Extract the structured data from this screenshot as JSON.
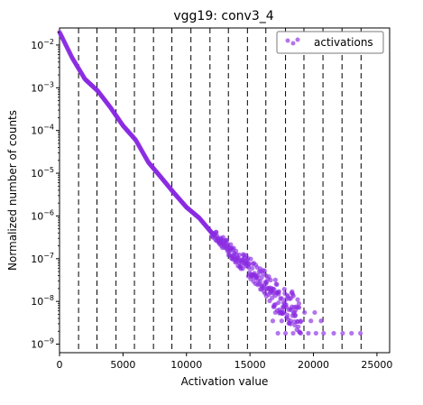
{
  "chart_data": {
    "type": "scatter",
    "title": "vgg19: conv3_4",
    "xlabel": "Activation value",
    "ylabel": "Normalized number of counts",
    "xlim": [
      0,
      26000
    ],
    "ylim_log10": [
      -9.2,
      -1.6
    ],
    "y_scale": "log",
    "x_ticks": [
      0,
      5000,
      10000,
      15000,
      20000,
      25000
    ],
    "x_tick_labels": [
      "0",
      "5000",
      "10000",
      "15000",
      "20000",
      "25000"
    ],
    "y_ticks_exp": [
      -2,
      -3,
      -4,
      -5,
      -6,
      -7,
      -8,
      -9
    ],
    "y_tick_base": "10",
    "grid": false,
    "legend_position": "upper right",
    "series": [
      {
        "name": "activations",
        "color": "#8a2be2",
        "marker": "circle",
        "trend": [
          [
            0,
            0.02
          ],
          [
            1000,
            0.005
          ],
          [
            2000,
            0.0016
          ],
          [
            3000,
            0.00085
          ],
          [
            4000,
            0.00035
          ],
          [
            5000,
            0.00013
          ],
          [
            6000,
            6e-05
          ],
          [
            7000,
            1.8e-05
          ],
          [
            8000,
            8e-06
          ],
          [
            9000,
            3.5e-06
          ],
          [
            10000,
            1.6e-06
          ],
          [
            11000,
            9e-07
          ],
          [
            12000,
            4e-07
          ],
          [
            13000,
            2.2e-07
          ],
          [
            14000,
            1.1e-07
          ],
          [
            15000,
            6e-08
          ],
          [
            16000,
            3e-08
          ],
          [
            17000,
            1.5e-08
          ],
          [
            18000,
            8e-09
          ],
          [
            19000,
            5e-09
          ],
          [
            20000,
            3e-09
          ]
        ],
        "tail_levels": [
          1.8e-09,
          3.5e-09,
          5.5e-09,
          7.5e-09
        ],
        "tail_points": [
          [
            17200,
            1.8e-09
          ],
          [
            17800,
            1.8e-09
          ],
          [
            18400,
            1.8e-09
          ],
          [
            19000,
            1.8e-09
          ],
          [
            19600,
            1.8e-09
          ],
          [
            20200,
            1.8e-09
          ],
          [
            20800,
            1.8e-09
          ],
          [
            21600,
            1.8e-09
          ],
          [
            22300,
            1.8e-09
          ],
          [
            23000,
            1.8e-09
          ],
          [
            23700,
            1.8e-09
          ],
          [
            16800,
            3.5e-09
          ],
          [
            17500,
            3.5e-09
          ],
          [
            18200,
            3.5e-09
          ],
          [
            19000,
            3.5e-09
          ],
          [
            19800,
            3.5e-09
          ],
          [
            20600,
            3.5e-09
          ],
          [
            17000,
            5.5e-09
          ],
          [
            17700,
            5.5e-09
          ],
          [
            18500,
            5.5e-09
          ],
          [
            19300,
            5.5e-09
          ],
          [
            20100,
            5.5e-09
          ],
          [
            16900,
            7.5e-09
          ],
          [
            17600,
            7.5e-09
          ],
          [
            18300,
            7.5e-09
          ]
        ]
      }
    ],
    "vertical_dashed_lines_x": [
      1500,
      2950,
      4450,
      5900,
      7400,
      8850,
      10350,
      11850,
      13300,
      14800,
      16250,
      17800,
      19250,
      20750,
      22250,
      23750
    ]
  }
}
